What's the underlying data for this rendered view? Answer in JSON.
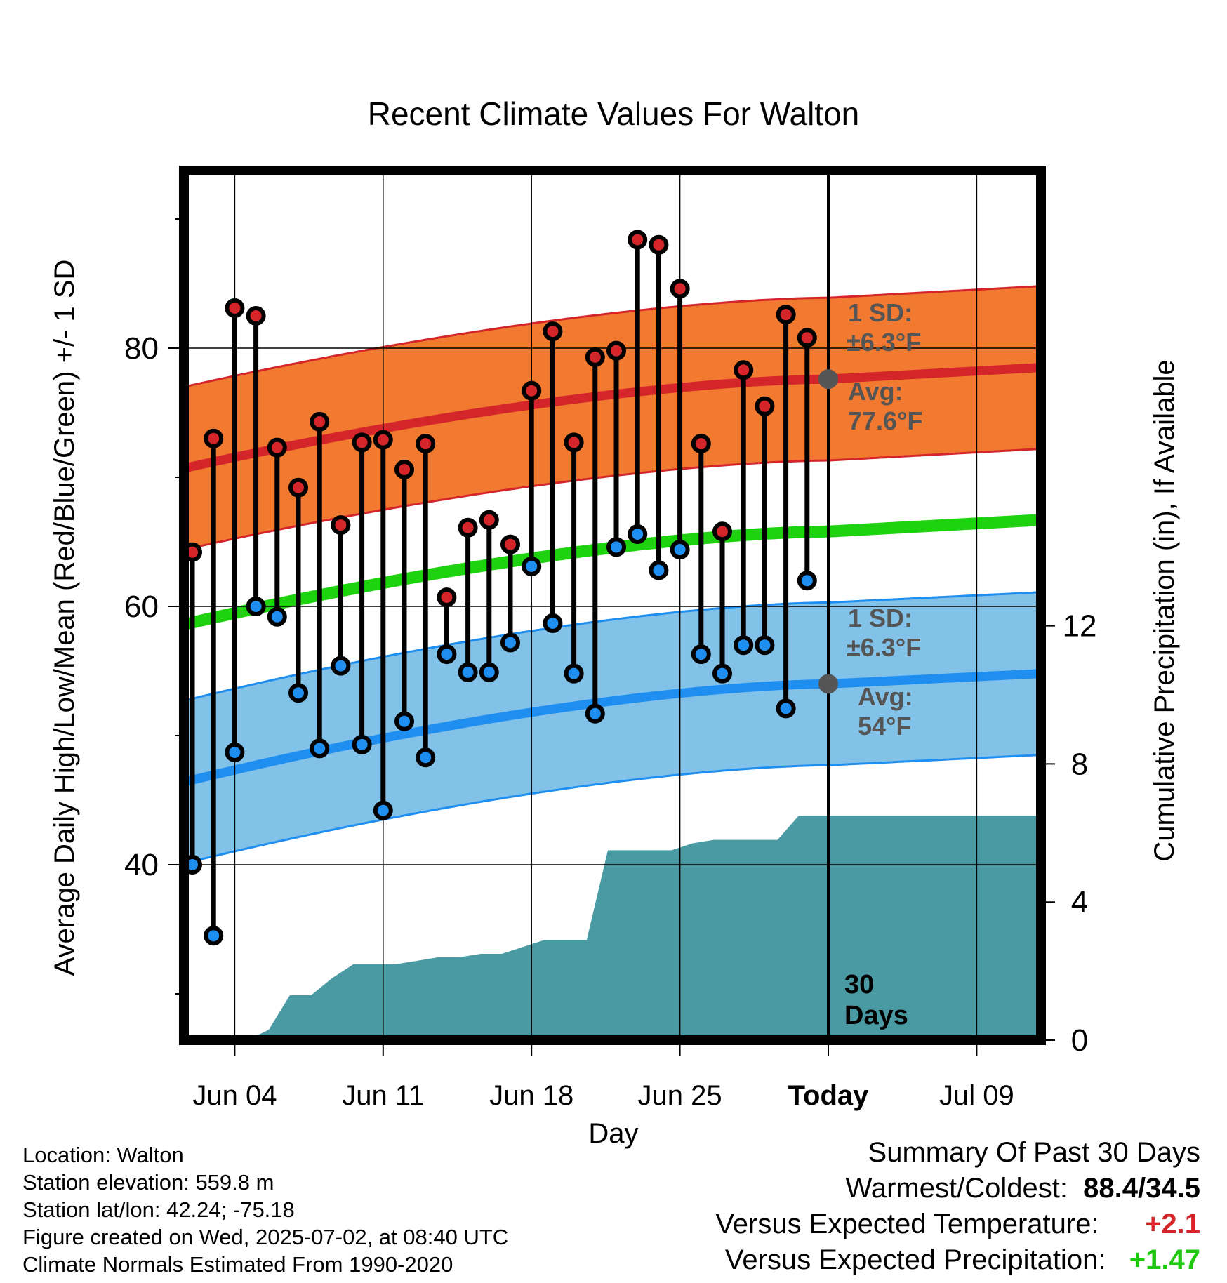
{
  "chart_data": {
    "type": "line",
    "title": "Recent Climate Values For Walton",
    "xlabel": "Day",
    "ylabel": "Average Daily High/Low/Mean (Red/Blue/Green) +/- 1 SD",
    "y2label": "Cumulative Precipitation (in), If Available",
    "x_ticks": [
      "Jun 04",
      "Jun 11",
      "Jun 18",
      "Jun 25",
      "Today",
      "Jul 09"
    ],
    "y_ticks": [
      40,
      60,
      80
    ],
    "y2_ticks": [
      0,
      4,
      8,
      12
    ],
    "ylim": [
      27,
      93.5
    ],
    "y2lim": [
      0,
      25
    ],
    "xlim_days_label": "Jun 01 – Jul 12",
    "grid": true,
    "today_label": "Today",
    "period_label": "30 Days",
    "dates": [
      "Jun 02",
      "Jun 03",
      "Jun 04",
      "Jun 05",
      "Jun 06",
      "Jun 07",
      "Jun 08",
      "Jun 09",
      "Jun 10",
      "Jun 11",
      "Jun 12",
      "Jun 13",
      "Jun 14",
      "Jun 15",
      "Jun 16",
      "Jun 17",
      "Jun 18",
      "Jun 19",
      "Jun 20",
      "Jun 21",
      "Jun 22",
      "Jun 23",
      "Jun 24",
      "Jun 25",
      "Jun 26",
      "Jun 27",
      "Jun 28",
      "Jun 29",
      "Jun 30",
      "Jul 01"
    ],
    "highs": [
      64.2,
      73.0,
      83.1,
      82.5,
      72.3,
      69.2,
      74.3,
      66.3,
      72.7,
      72.9,
      70.6,
      72.6,
      60.7,
      66.1,
      66.7,
      64.8,
      76.7,
      81.3,
      72.7,
      79.3,
      79.8,
      88.4,
      88.0,
      84.6,
      72.6,
      65.8,
      78.3,
      75.5,
      82.6,
      80.8
    ],
    "lows": [
      40.0,
      34.5,
      48.7,
      60.0,
      59.2,
      53.3,
      49.0,
      55.4,
      49.3,
      44.2,
      51.1,
      48.3,
      56.3,
      54.9,
      54.9,
      57.2,
      63.1,
      58.7,
      54.8,
      51.7,
      64.6,
      65.6,
      62.8,
      64.4,
      56.3,
      54.8,
      57.0,
      57.0,
      52.1,
      62.0
    ],
    "normals": {
      "days": [
        "Jun 01",
        "Jul 01",
        "Jul 12"
      ],
      "high_avg": [
        70.7,
        77.6,
        78.5
      ],
      "high_sd": 6.3,
      "low_avg": [
        46.4,
        54.0,
        54.8
      ],
      "low_sd": 6.3,
      "mean_avg": [
        58.6,
        65.8,
        66.7
      ]
    },
    "precip_cumulative": [
      0.0,
      0.0,
      0.0,
      0.0,
      0.3,
      1.3,
      1.3,
      1.8,
      2.2,
      2.2,
      2.2,
      2.3,
      2.4,
      2.4,
      2.5,
      2.5,
      2.7,
      2.9,
      2.9,
      2.9,
      5.5,
      5.5,
      5.5,
      5.5,
      5.7,
      5.8,
      5.8,
      5.8,
      5.8,
      6.5,
      6.5
    ],
    "annotations": {
      "high_sd": {
        "line1": "1 SD:",
        "line2": "±6.3°F"
      },
      "high_avg": {
        "line1": "Avg:",
        "line2": "77.6°F"
      },
      "low_sd": {
        "line1": "1 SD:",
        "line2": "±6.3°F"
      },
      "low_avg": {
        "line1": "Avg:",
        "line2": "54°F"
      }
    },
    "colors": {
      "high_band": "#f27a30",
      "high_line": "#d4262a",
      "low_band": "#82c2e8",
      "low_line": "#1e8ef0",
      "mean_line": "#1ed20f",
      "precip": "#4a9aa3",
      "high_dot": "#d4262a",
      "low_dot": "#1e8ef0",
      "annotation": "#555555"
    }
  },
  "info": {
    "location": "Location: Walton",
    "elevation": "Station elevation: 559.8 m",
    "latlon": "Station lat/lon: 42.24; -75.18",
    "created": "Figure created on Wed, 2025-07-02, at 08:40 UTC",
    "normals": "Climate Normals Estimated From 1990-2020"
  },
  "summary": {
    "heading": "Summary Of Past 30 Days",
    "warmest_label": "Warmest/Coldest:",
    "warmest_value": "88.4/34.5",
    "temp_label": "Versus Expected Temperature:",
    "temp_value": "+2.1",
    "temp_color": "#d4262a",
    "precip_label": "Versus Expected Precipitation:",
    "precip_value": "+1.47",
    "precip_color": "#1ec80f"
  }
}
